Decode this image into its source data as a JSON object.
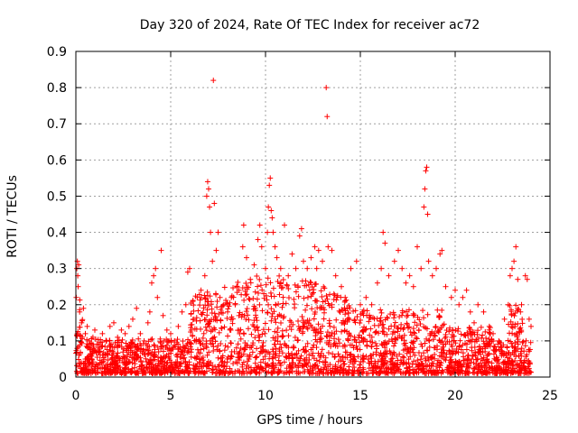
{
  "chart_data": {
    "type": "scatter",
    "title": "Day 320 of 2024, Rate Of TEC Index for receiver ac72",
    "xlabel": "GPS time / hours",
    "ylabel": "ROTI / TECUs",
    "xlim": [
      0,
      25
    ],
    "ylim": [
      0,
      0.9
    ],
    "xticks": [
      "0",
      "5",
      "10",
      "15",
      "20",
      "25"
    ],
    "yticks": [
      "0",
      "0.1",
      "0.2",
      "0.3",
      "0.4",
      "0.5",
      "0.6",
      "0.7",
      "0.8",
      "0.9"
    ],
    "grid": true,
    "marker": "plus",
    "color": "#ff0000",
    "series": [
      {
        "values_description_free": true,
        "points": [
          [
            0.02,
            0.22
          ],
          [
            0.05,
            0.3
          ],
          [
            0.08,
            0.32
          ],
          [
            0.1,
            0.28
          ],
          [
            0.12,
            0.25
          ],
          [
            0.15,
            0.31
          ],
          [
            0.2,
            0.18
          ],
          [
            0.3,
            0.15
          ],
          [
            0.4,
            0.19
          ],
          [
            0.5,
            0.12
          ],
          [
            0.6,
            0.14
          ],
          [
            0.7,
            0.1
          ],
          [
            0.8,
            0.08
          ],
          [
            0.9,
            0.11
          ],
          [
            1.0,
            0.13
          ],
          [
            1.2,
            0.09
          ],
          [
            1.4,
            0.12
          ],
          [
            1.6,
            0.1
          ],
          [
            1.8,
            0.14
          ],
          [
            2.0,
            0.15
          ],
          [
            2.2,
            0.11
          ],
          [
            2.4,
            0.13
          ],
          [
            2.6,
            0.12
          ],
          [
            2.8,
            0.14
          ],
          [
            3.0,
            0.16
          ],
          [
            3.2,
            0.19
          ],
          [
            3.4,
            0.12
          ],
          [
            3.6,
            0.1
          ],
          [
            3.8,
            0.15
          ],
          [
            3.9,
            0.18
          ],
          [
            4.0,
            0.26
          ],
          [
            4.1,
            0.28
          ],
          [
            4.2,
            0.3
          ],
          [
            4.3,
            0.22
          ],
          [
            4.5,
            0.35
          ],
          [
            4.6,
            0.17
          ],
          [
            4.8,
            0.13
          ],
          [
            5.0,
            0.12
          ],
          [
            5.2,
            0.1
          ],
          [
            5.4,
            0.14
          ],
          [
            5.6,
            0.18
          ],
          [
            5.8,
            0.2
          ],
          [
            5.9,
            0.29
          ],
          [
            6.0,
            0.3
          ],
          [
            6.2,
            0.16
          ],
          [
            6.4,
            0.22
          ],
          [
            6.6,
            0.24
          ],
          [
            6.8,
            0.28
          ],
          [
            6.9,
            0.5
          ],
          [
            6.95,
            0.54
          ],
          [
            7.0,
            0.52
          ],
          [
            7.05,
            0.47
          ],
          [
            7.1,
            0.4
          ],
          [
            7.2,
            0.32
          ],
          [
            7.25,
            0.82
          ],
          [
            7.3,
            0.48
          ],
          [
            7.4,
            0.35
          ],
          [
            7.5,
            0.4
          ],
          [
            7.6,
            0.22
          ],
          [
            7.8,
            0.2
          ],
          [
            8.0,
            0.18
          ],
          [
            8.2,
            0.22
          ],
          [
            8.4,
            0.2
          ],
          [
            8.6,
            0.24
          ],
          [
            8.8,
            0.36
          ],
          [
            8.85,
            0.42
          ],
          [
            9.0,
            0.33
          ],
          [
            9.2,
            0.27
          ],
          [
            9.4,
            0.31
          ],
          [
            9.6,
            0.38
          ],
          [
            9.7,
            0.42
          ],
          [
            9.8,
            0.36
          ],
          [
            10.0,
            0.3
          ],
          [
            10.1,
            0.4
          ],
          [
            10.15,
            0.47
          ],
          [
            10.2,
            0.53
          ],
          [
            10.25,
            0.55
          ],
          [
            10.3,
            0.46
          ],
          [
            10.35,
            0.44
          ],
          [
            10.4,
            0.4
          ],
          [
            10.5,
            0.36
          ],
          [
            10.6,
            0.33
          ],
          [
            10.8,
            0.3
          ],
          [
            11.0,
            0.42
          ],
          [
            11.2,
            0.28
          ],
          [
            11.4,
            0.34
          ],
          [
            11.6,
            0.3
          ],
          [
            11.8,
            0.39
          ],
          [
            11.9,
            0.41
          ],
          [
            12.0,
            0.32
          ],
          [
            12.2,
            0.3
          ],
          [
            12.4,
            0.33
          ],
          [
            12.6,
            0.36
          ],
          [
            12.7,
            0.3
          ],
          [
            12.8,
            0.35
          ],
          [
            13.0,
            0.32
          ],
          [
            13.2,
            0.8
          ],
          [
            13.25,
            0.72
          ],
          [
            13.3,
            0.36
          ],
          [
            13.5,
            0.35
          ],
          [
            13.7,
            0.28
          ],
          [
            14.0,
            0.25
          ],
          [
            14.2,
            0.22
          ],
          [
            14.5,
            0.3
          ],
          [
            14.8,
            0.32
          ],
          [
            15.0,
            0.2
          ],
          [
            15.3,
            0.22
          ],
          [
            15.6,
            0.2
          ],
          [
            15.9,
            0.26
          ],
          [
            16.1,
            0.3
          ],
          [
            16.2,
            0.4
          ],
          [
            16.3,
            0.37
          ],
          [
            16.5,
            0.28
          ],
          [
            16.8,
            0.32
          ],
          [
            17.0,
            0.35
          ],
          [
            17.2,
            0.3
          ],
          [
            17.4,
            0.26
          ],
          [
            17.6,
            0.28
          ],
          [
            17.8,
            0.25
          ],
          [
            18.0,
            0.36
          ],
          [
            18.2,
            0.3
          ],
          [
            18.35,
            0.47
          ],
          [
            18.4,
            0.52
          ],
          [
            18.45,
            0.57
          ],
          [
            18.5,
            0.58
          ],
          [
            18.55,
            0.45
          ],
          [
            18.6,
            0.32
          ],
          [
            18.8,
            0.28
          ],
          [
            19.0,
            0.3
          ],
          [
            19.2,
            0.34
          ],
          [
            19.3,
            0.35
          ],
          [
            19.5,
            0.25
          ],
          [
            19.8,
            0.22
          ],
          [
            20.0,
            0.24
          ],
          [
            20.2,
            0.2
          ],
          [
            20.4,
            0.22
          ],
          [
            20.6,
            0.24
          ],
          [
            20.8,
            0.18
          ],
          [
            21.0,
            0.15
          ],
          [
            21.2,
            0.2
          ],
          [
            21.5,
            0.18
          ],
          [
            21.8,
            0.14
          ],
          [
            22.0,
            0.12
          ],
          [
            22.3,
            0.1
          ],
          [
            22.6,
            0.16
          ],
          [
            22.8,
            0.2
          ],
          [
            22.9,
            0.28
          ],
          [
            23.0,
            0.3
          ],
          [
            23.1,
            0.32
          ],
          [
            23.2,
            0.36
          ],
          [
            23.3,
            0.27
          ],
          [
            23.5,
            0.2
          ],
          [
            23.7,
            0.28
          ],
          [
            23.8,
            0.27
          ],
          [
            23.9,
            0.16
          ],
          [
            24.0,
            0.14
          ]
        ]
      }
    ]
  }
}
